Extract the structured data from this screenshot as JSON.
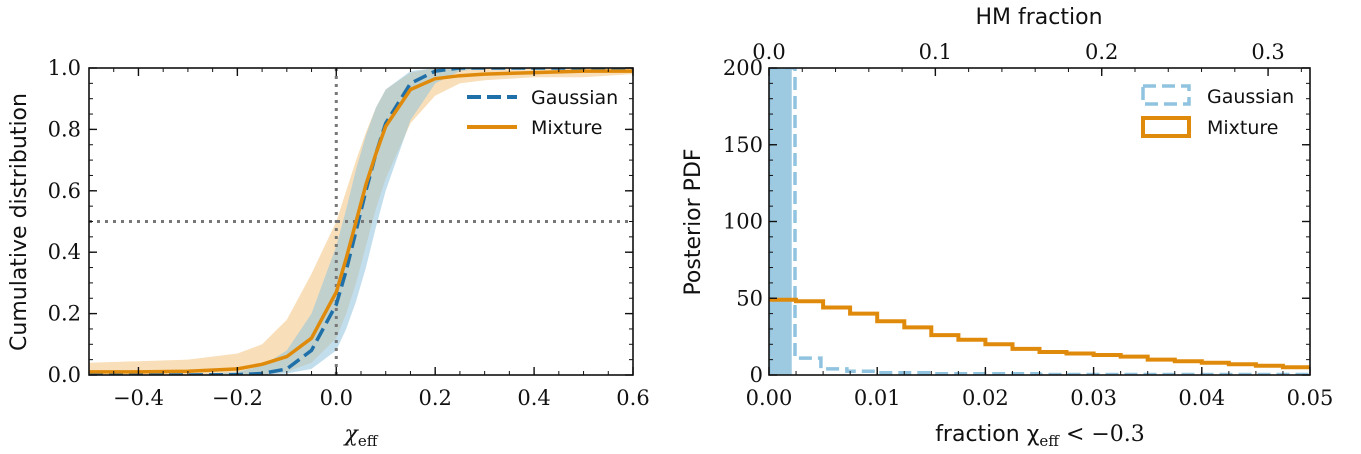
{
  "chart_data": [
    {
      "type": "line",
      "xlabel": "χ",
      "xlabel_sub": "eff",
      "ylabel": "Cumulative distribution",
      "xlim": [
        -0.5,
        0.6
      ],
      "ylim": [
        0.0,
        1.0
      ],
      "xticks": [
        -0.4,
        -0.2,
        0.0,
        0.2,
        0.4,
        0.6
      ],
      "xtick_labels": [
        "−0.4",
        "−0.2",
        "0.0",
        "0.2",
        "0.4",
        "0.6"
      ],
      "yticks": [
        0.0,
        0.2,
        0.4,
        0.6,
        0.8,
        1.0
      ],
      "ytick_labels": [
        "0.0",
        "0.2",
        "0.4",
        "0.6",
        "0.8",
        "1.0"
      ],
      "legend_position": "top-right",
      "reference_lines": [
        {
          "orientation": "vertical",
          "value": 0.0,
          "style": "dotted"
        },
        {
          "orientation": "horizontal",
          "value": 0.5,
          "style": "dotted"
        }
      ],
      "x": [
        -0.5,
        -0.4,
        -0.3,
        -0.2,
        -0.15,
        -0.1,
        -0.05,
        0.0,
        0.02,
        0.04,
        0.06,
        0.08,
        0.1,
        0.15,
        0.2,
        0.25,
        0.3,
        0.4,
        0.5,
        0.6
      ],
      "series": [
        {
          "name": "Gaussian",
          "style": "dashed",
          "color": "#1f6fa8",
          "band_color": "#8fc3df",
          "values": [
            0.0,
            0.0,
            0.0,
            0.001,
            0.005,
            0.02,
            0.08,
            0.23,
            0.34,
            0.47,
            0.6,
            0.72,
            0.82,
            0.95,
            0.99,
            1.0,
            1.0,
            1.0,
            1.0,
            1.0
          ],
          "lower": [
            0.0,
            0.0,
            0.0,
            0.0,
            0.001,
            0.005,
            0.02,
            0.08,
            0.15,
            0.24,
            0.35,
            0.48,
            0.6,
            0.83,
            0.95,
            0.99,
            1.0,
            1.0,
            1.0,
            1.0
          ],
          "upper": [
            0.0,
            0.0,
            0.0,
            0.01,
            0.03,
            0.08,
            0.2,
            0.42,
            0.54,
            0.67,
            0.78,
            0.87,
            0.93,
            0.99,
            1.0,
            1.0,
            1.0,
            1.0,
            1.0,
            1.0
          ]
        },
        {
          "name": "Mixture",
          "style": "solid",
          "color": "#e08a0b",
          "band_color": "#f5c98a",
          "values": [
            0.01,
            0.01,
            0.012,
            0.02,
            0.035,
            0.06,
            0.12,
            0.27,
            0.38,
            0.5,
            0.62,
            0.72,
            0.81,
            0.93,
            0.965,
            0.975,
            0.98,
            0.985,
            0.99,
            0.99
          ],
          "lower": [
            0.0,
            0.0,
            0.0,
            0.0,
            0.0,
            0.01,
            0.04,
            0.12,
            0.2,
            0.3,
            0.42,
            0.54,
            0.64,
            0.82,
            0.91,
            0.95,
            0.96,
            0.97,
            0.97,
            0.98
          ],
          "upper": [
            0.04,
            0.045,
            0.05,
            0.07,
            0.1,
            0.18,
            0.33,
            0.5,
            0.6,
            0.7,
            0.79,
            0.87,
            0.93,
            0.985,
            1.0,
            1.0,
            1.0,
            1.0,
            1.0,
            1.0
          ]
        }
      ]
    },
    {
      "type": "histogram",
      "xlabel": "fraction χ",
      "xlabel_sub": "eff",
      "xlabel_tail": " < −0.3",
      "ylabel": "Posterior PDF",
      "top_xlabel": "HM fraction",
      "xlim": [
        0.0,
        0.05
      ],
      "ylim": [
        0,
        200
      ],
      "xticks": [
        0.0,
        0.01,
        0.02,
        0.03,
        0.04,
        0.05
      ],
      "xtick_labels": [
        "0.00",
        "0.01",
        "0.02",
        "0.03",
        "0.04",
        "0.05"
      ],
      "yticks": [
        0,
        50,
        100,
        150,
        200
      ],
      "ytick_labels": [
        "0",
        "50",
        "100",
        "150",
        "200"
      ],
      "top_xlim": [
        0.0,
        0.3252
      ],
      "top_xticks": [
        0.0,
        0.1,
        0.2,
        0.3
      ],
      "top_xtick_labels": [
        "0.0",
        "0.1",
        "0.2",
        "0.3"
      ],
      "legend_position": "top-right",
      "bin_edges": [
        0.0,
        0.0025,
        0.005,
        0.0075,
        0.01,
        0.0125,
        0.015,
        0.0175,
        0.02,
        0.0225,
        0.025,
        0.0275,
        0.03,
        0.0325,
        0.035,
        0.0375,
        0.04,
        0.0425,
        0.045,
        0.0475,
        0.05
      ],
      "series": [
        {
          "name": "Gaussian",
          "style": "filled-dashed",
          "color": "#8fc3df",
          "fill_color": "#9ecae1",
          "filled_bin": {
            "x": [
              0.0,
              0.0004
            ],
            "value": 200
          },
          "outline": [
            {
              "x": 0.0,
              "y": 0.0
            },
            {
              "x": 0.0,
              "y": 200
            },
            {
              "x": 0.0024,
              "y": 200
            },
            {
              "x": 0.0024,
              "y": 11
            },
            {
              "x": 0.0048,
              "y": 11
            },
            {
              "x": 0.0048,
              "y": 4
            },
            {
              "x": 0.0072,
              "y": 4
            },
            {
              "x": 0.0072,
              "y": 2.5
            },
            {
              "x": 0.01,
              "y": 2.5
            },
            {
              "x": 0.01,
              "y": 1.5
            },
            {
              "x": 0.015,
              "y": 1.5
            },
            {
              "x": 0.015,
              "y": 0.8
            },
            {
              "x": 0.025,
              "y": 0.8
            },
            {
              "x": 0.025,
              "y": 0.3
            },
            {
              "x": 0.05,
              "y": 0.3
            }
          ]
        },
        {
          "name": "Mixture",
          "style": "step",
          "color": "#e08a0b",
          "values": [
            49,
            48,
            44,
            40,
            35,
            31,
            26,
            23,
            20,
            17,
            15,
            14,
            13,
            12,
            10,
            9,
            8,
            7,
            6,
            5
          ]
        }
      ]
    }
  ]
}
